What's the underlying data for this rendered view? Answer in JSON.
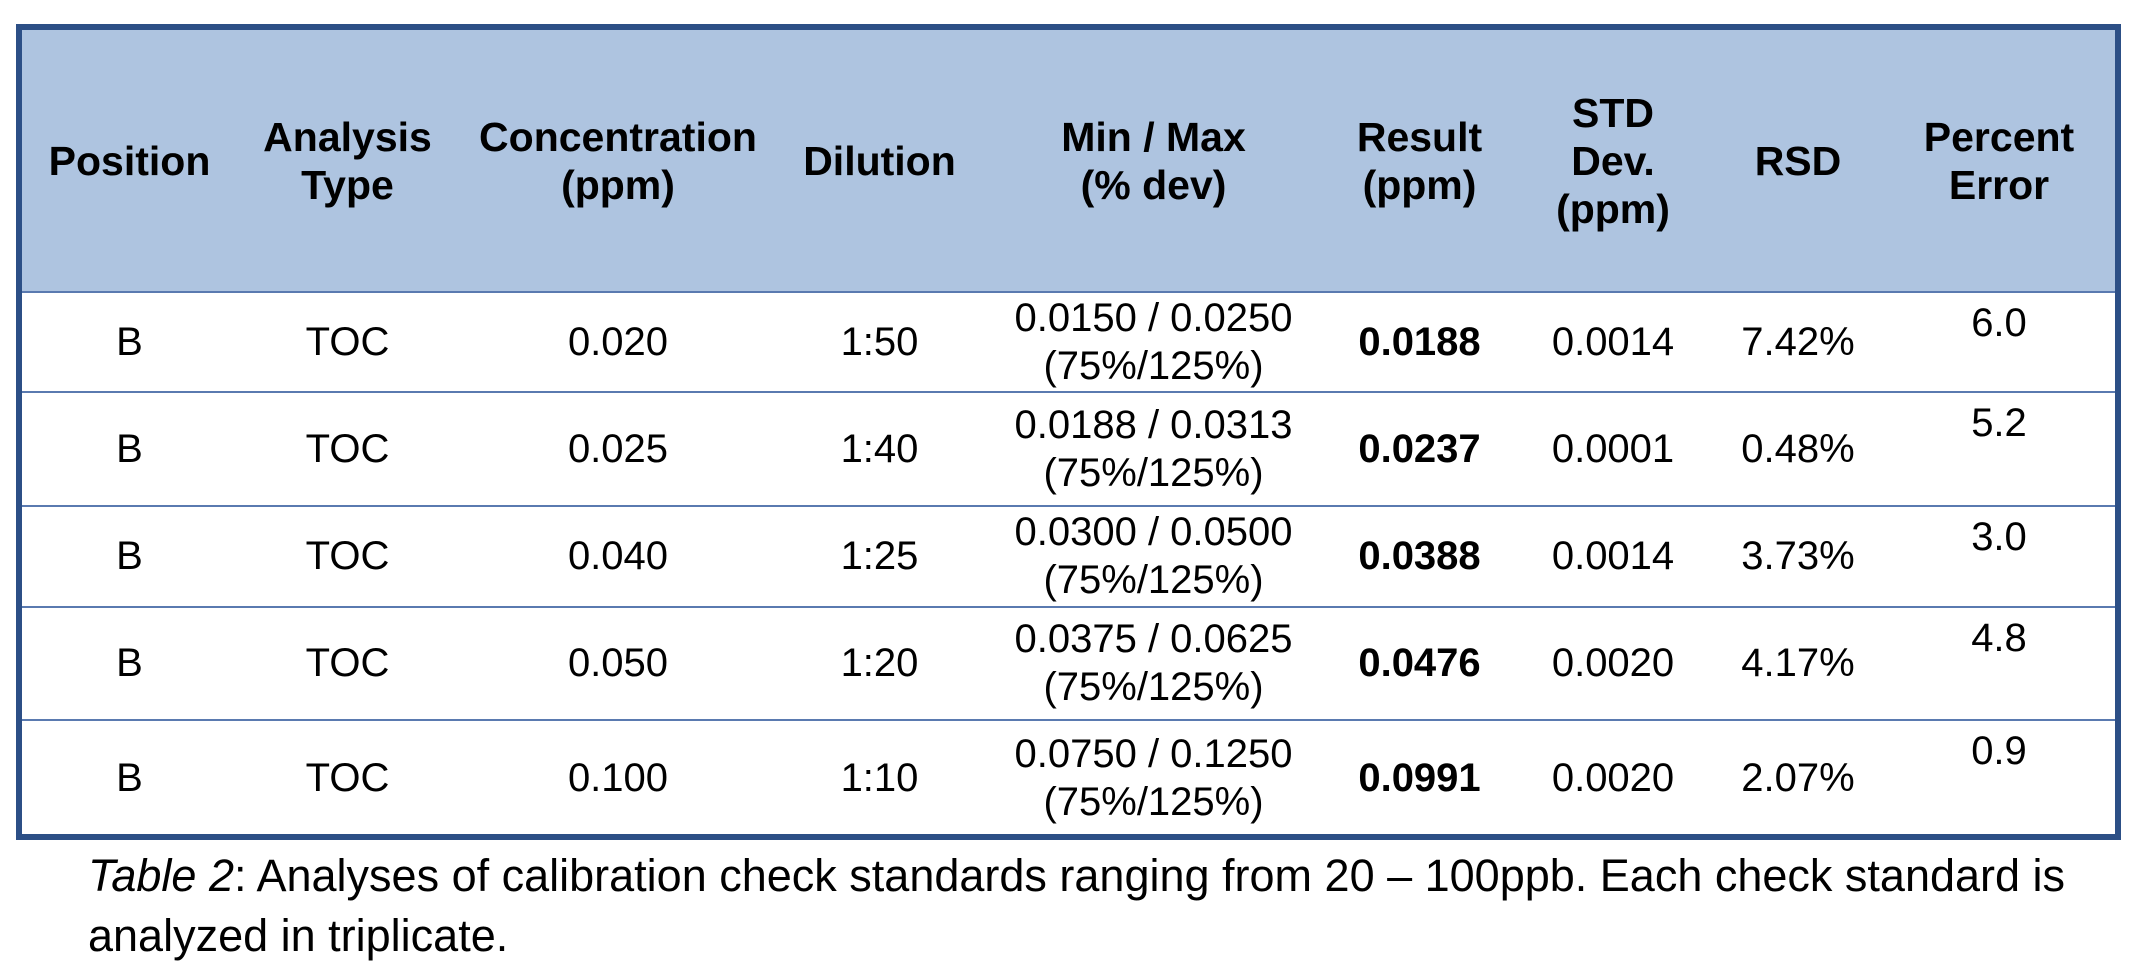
{
  "table": {
    "headers": [
      [
        "Position"
      ],
      [
        "Analysis",
        "Type"
      ],
      [
        "Concentration",
        "(ppm)"
      ],
      [
        "Dilution"
      ],
      [
        "Min / Max",
        "(% dev)"
      ],
      [
        "Result",
        "(ppm)"
      ],
      [
        "STD",
        "Dev.",
        "(ppm)"
      ],
      [
        "RSD"
      ],
      [
        "Percent",
        "Error"
      ]
    ],
    "rows": [
      {
        "position": "B",
        "analysis_type": "TOC",
        "concentration": "0.020",
        "dilution": "1:50",
        "min_max": "0.0150 / 0.0250",
        "dev": "(75%/125%)",
        "result": "0.0188",
        "std_dev": "0.0014",
        "rsd": "7.42%",
        "percent_error": "6.0"
      },
      {
        "position": "B",
        "analysis_type": "TOC",
        "concentration": "0.025",
        "dilution": "1:40",
        "min_max": "0.0188 / 0.0313",
        "dev": "(75%/125%)",
        "result": "0.0237",
        "std_dev": "0.0001",
        "rsd": "0.48%",
        "percent_error": "5.2"
      },
      {
        "position": "B",
        "analysis_type": "TOC",
        "concentration": "0.040",
        "dilution": "1:25",
        "min_max": "0.0300 / 0.0500",
        "dev": "(75%/125%)",
        "result": "0.0388",
        "std_dev": "0.0014",
        "rsd": "3.73%",
        "percent_error": "3.0"
      },
      {
        "position": "B",
        "analysis_type": "TOC",
        "concentration": "0.050",
        "dilution": "1:20",
        "min_max": "0.0375 / 0.0625",
        "dev": "(75%/125%)",
        "result": "0.0476",
        "std_dev": "0.0020",
        "rsd": "4.17%",
        "percent_error": "4.8"
      },
      {
        "position": "B",
        "analysis_type": "TOC",
        "concentration": "0.100",
        "dilution": "1:10",
        "min_max": "0.0750 / 0.1250",
        "dev": "(75%/125%)",
        "result": "0.0991",
        "std_dev": "0.0020",
        "rsd": "2.07%",
        "percent_error": "0.9"
      }
    ]
  },
  "caption": {
    "label": "Table 2",
    "text": ": Analyses of calibration check standards ranging from 20 – 100ppb. Each check standard is analyzed in triplicate."
  },
  "colors": {
    "header_background": "#aec4e0",
    "border": "#2c4f86",
    "row_divider": "#5a7ab0"
  }
}
